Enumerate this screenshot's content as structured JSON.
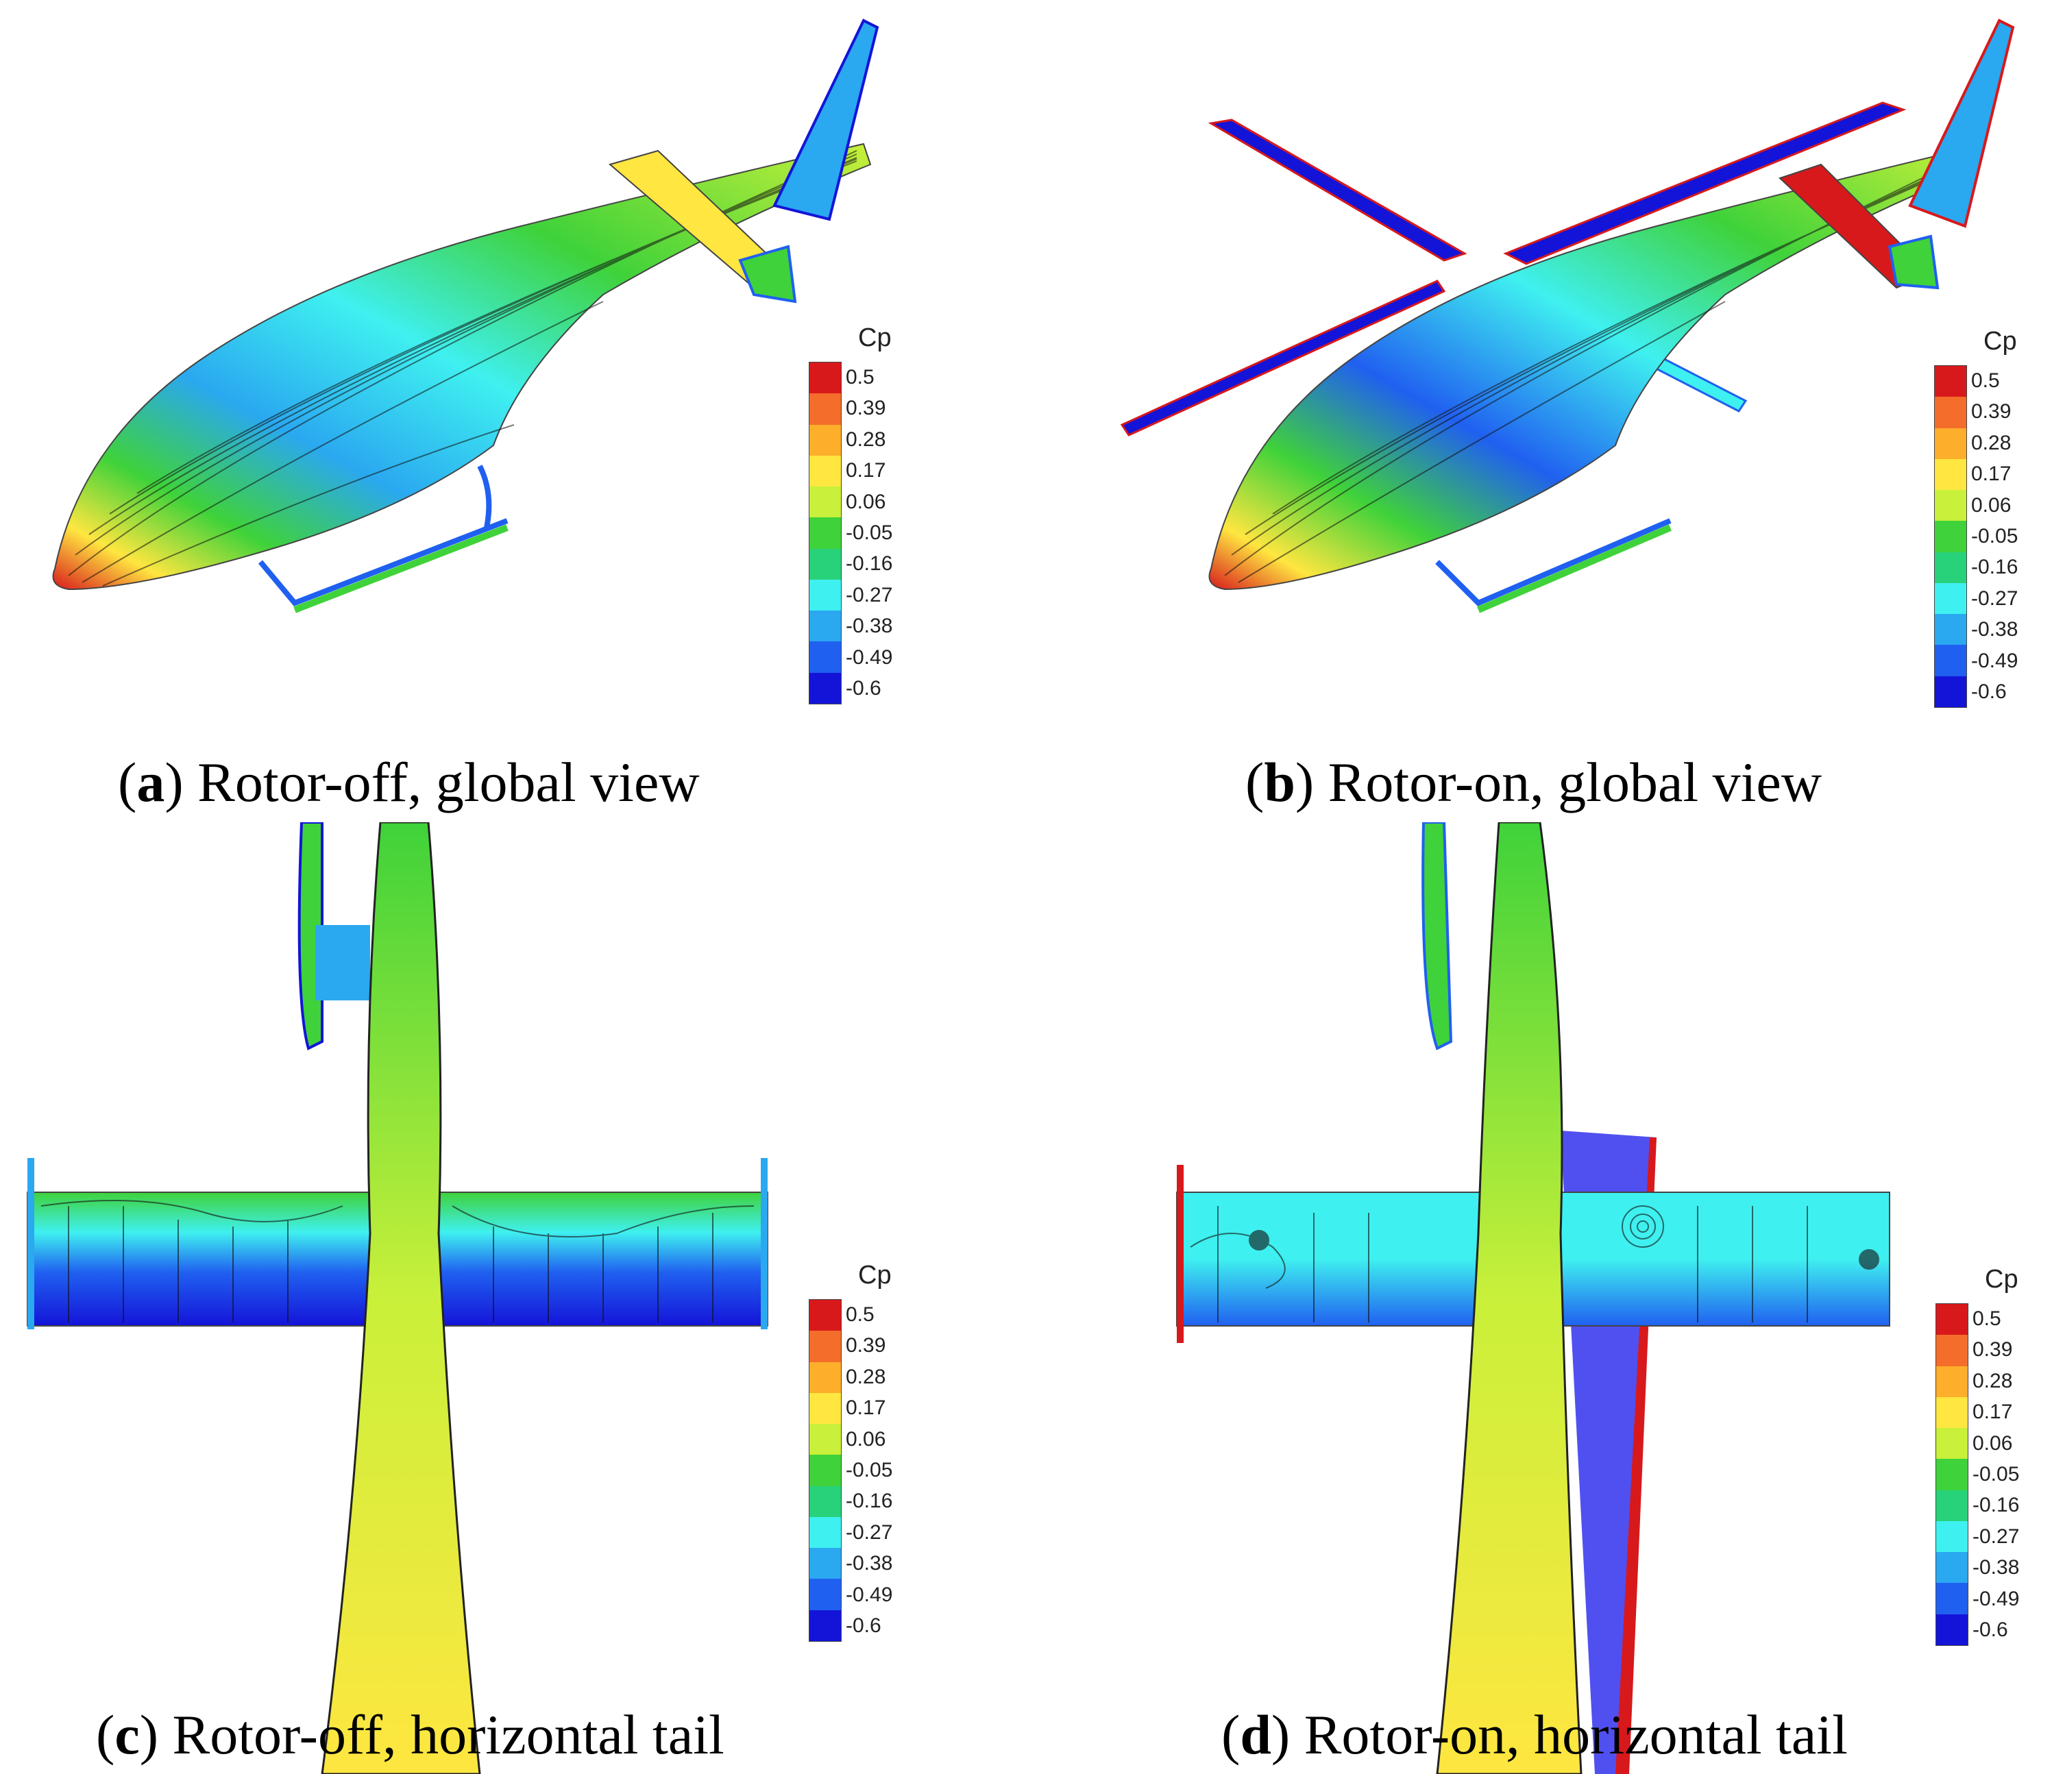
{
  "colorbar": {
    "title": "Cp",
    "ticks": [
      "0.5",
      "0.39",
      "0.28",
      "0.17",
      "0.06",
      "-0.05",
      "-0.16",
      "-0.27",
      "-0.38",
      "-0.49",
      "-0.6"
    ],
    "range": [
      -0.6,
      0.5
    ],
    "colors": [
      "#d7191c",
      "#f46d2a",
      "#fdae2a",
      "#ffe640",
      "#c9f03a",
      "#3fd23a",
      "#28d27a",
      "#3ff0f0",
      "#2aa8f0",
      "#2060f0",
      "#1414d8"
    ]
  },
  "panels": [
    {
      "letter": "a",
      "caption": ") Rotor-off, global view"
    },
    {
      "letter": "b",
      "caption": ") Rotor-on, global view"
    },
    {
      "letter": "c",
      "caption": ") Rotor-off, horizontal tail"
    },
    {
      "letter": "d",
      "caption": ") Rotor-on, horizontal tail"
    }
  ]
}
